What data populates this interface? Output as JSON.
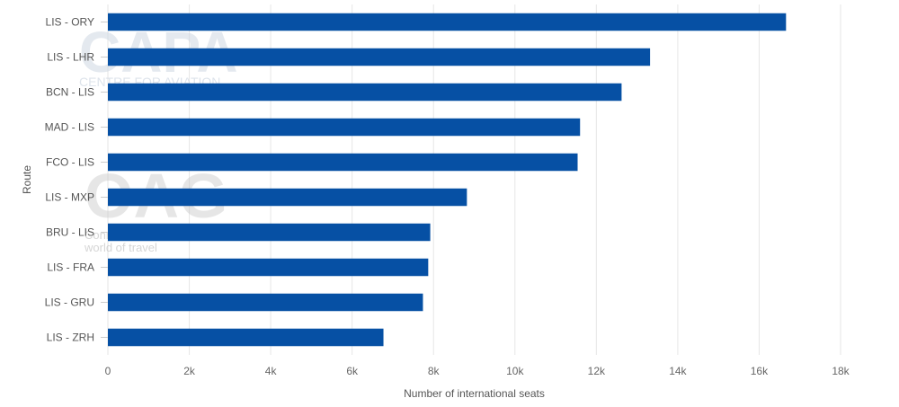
{
  "chart_data": {
    "type": "bar",
    "orientation": "horizontal",
    "categories": [
      "LIS - ORY",
      "LIS - LHR",
      "BCN - LIS",
      "MAD - LIS",
      "FCO - LIS",
      "LIS - MXP",
      "BRU - LIS",
      "LIS - FRA",
      "LIS - GRU",
      "LIS - ZRH"
    ],
    "values": [
      16660,
      13320,
      12620,
      11600,
      11540,
      8820,
      7920,
      7870,
      7740,
      6770
    ],
    "xlabel": "Number of international seats",
    "ylabel": "Route",
    "xlim": [
      0,
      18000
    ],
    "xticks": [
      0,
      2000,
      4000,
      6000,
      8000,
      10000,
      12000,
      14000,
      16000,
      18000
    ],
    "xtick_labels": [
      "0",
      "2k",
      "4k",
      "6k",
      "8k",
      "10k",
      "12k",
      "14k",
      "16k",
      "18k"
    ],
    "grid": "vertical",
    "bar_color": "#0650a4"
  },
  "watermarks": {
    "capa_title": "CAPA",
    "capa_subtitle": "CENTRE FOR AVIATION",
    "oag_title": "OAG",
    "oag_line1": "Conn",
    "oag_line2": "world of travel"
  }
}
